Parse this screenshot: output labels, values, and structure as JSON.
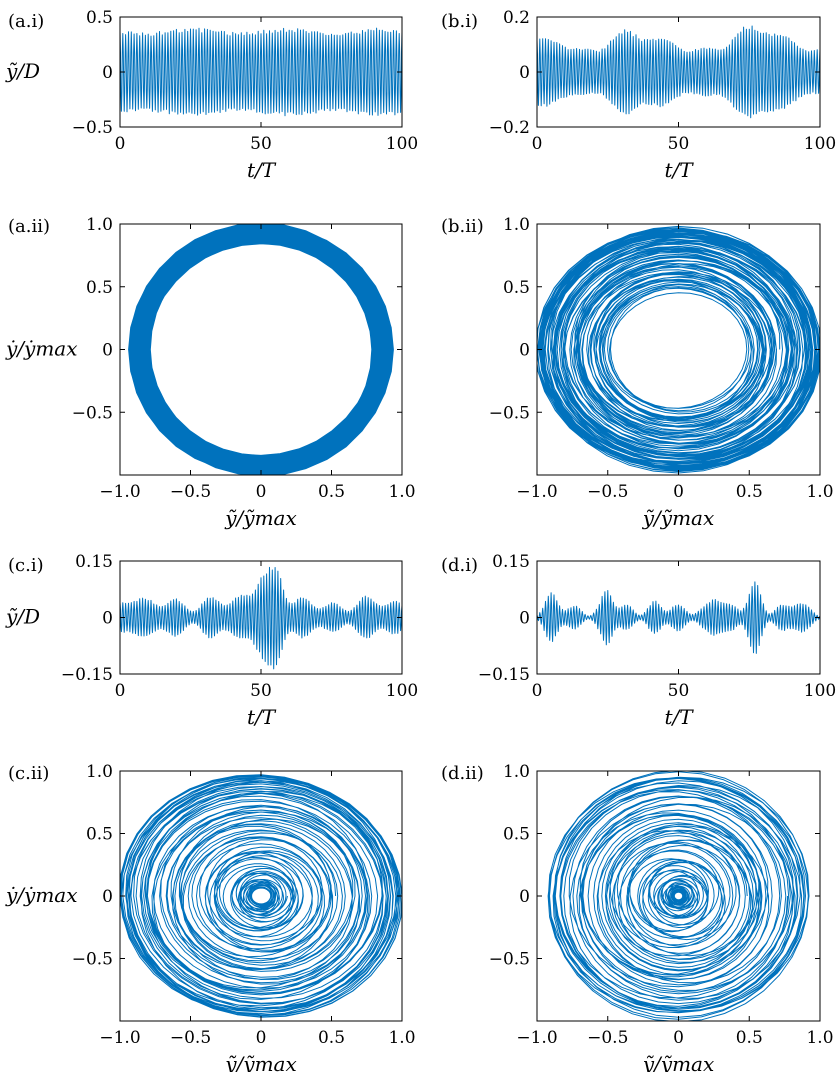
{
  "figure": {
    "series_color": "#0072BD",
    "rows": [
      {
        "ylabel": "ỹ/D",
        "xlabel": "t/T"
      },
      {
        "ylabel": "ẏ/ẏmax",
        "xlabel": "ỹ/ỹmax"
      },
      {
        "ylabel": "ỹ/D",
        "xlabel": "t/T"
      },
      {
        "ylabel": "ẏ/ẏmax",
        "xlabel": "ỹ/ỹmax"
      }
    ]
  },
  "chart_data": [
    {
      "id": "a-i",
      "panel_label": "(a.i)",
      "type": "line",
      "xlabel": "t/T",
      "ylabel": "ỹ/D",
      "xlim": [
        0,
        100
      ],
      "ylim": [
        -0.5,
        0.5
      ],
      "xticks": [
        {
          "v": 0,
          "label": "0"
        },
        {
          "v": 50,
          "label": "50"
        },
        {
          "v": 100,
          "label": "100"
        }
      ],
      "yticks": [
        {
          "v": -0.5,
          "label": "−0.5"
        },
        {
          "v": 0,
          "label": "0"
        },
        {
          "v": 0.5,
          "label": "0.5"
        }
      ],
      "series": [
        {
          "kind": "time",
          "cycles": 100,
          "base": 0.38,
          "modulation": [
            {
              "a": 0.02,
              "f": 3
            }
          ],
          "envelope": []
        }
      ]
    },
    {
      "id": "b-i",
      "panel_label": "(b.i)",
      "type": "line",
      "xlabel": "t/T",
      "ylabel": "ỹ/D",
      "xlim": [
        0,
        100
      ],
      "ylim": [
        -0.2,
        0.2
      ],
      "xticks": [
        {
          "v": 0,
          "label": "0"
        },
        {
          "v": 50,
          "label": "50"
        },
        {
          "v": 100,
          "label": "100"
        }
      ],
      "yticks": [
        {
          "v": -0.2,
          "label": "−0.2"
        },
        {
          "v": 0,
          "label": "0"
        },
        {
          "v": 0.2,
          "label": "0.2"
        }
      ],
      "series": [
        {
          "kind": "time",
          "cycles": 100,
          "base": 0.1,
          "modulation": [
            {
              "a": 0.025,
              "f": 2.3
            },
            {
              "a": 0.01,
              "f": 7
            }
          ],
          "envelope": [
            {
              "c": 0.12,
              "at": 8,
              "w": 5
            },
            {
              "c": 0.135,
              "at": 30,
              "w": 6
            },
            {
              "c": 0.15,
              "at": 75,
              "w": 9
            },
            {
              "c": 0.1,
              "at": 58,
              "w": 4
            }
          ]
        }
      ]
    },
    {
      "id": "a-ii",
      "panel_label": "(a.ii)",
      "type": "line",
      "xlabel": "ỹ/ỹmax",
      "ylabel": "ẏ/ẏmax",
      "xlim": [
        -1,
        1
      ],
      "ylim": [
        -1,
        1
      ],
      "xticks": [
        {
          "v": -1,
          "label": "−1.0"
        },
        {
          "v": -0.5,
          "label": "−0.5"
        },
        {
          "v": 0,
          "label": "0"
        },
        {
          "v": 0.5,
          "label": "0.5"
        },
        {
          "v": 1,
          "label": "1.0"
        }
      ],
      "yticks": [
        {
          "v": -0.5,
          "label": "−0.5"
        },
        {
          "v": 0,
          "label": "0"
        },
        {
          "v": 0.5,
          "label": "0.5"
        },
        {
          "v": 1,
          "label": "1.0"
        }
      ],
      "series": [
        {
          "kind": "phase",
          "turns": 110,
          "rmin": 0.86,
          "rmax": 0.99,
          "sx": 0.93,
          "sy": 1.0,
          "mode": "band"
        }
      ]
    },
    {
      "id": "b-ii",
      "panel_label": "(b.ii)",
      "type": "line",
      "xlabel": "ỹ/ỹmax",
      "ylabel": "ẏ/ẏmax",
      "xlim": [
        -1,
        1
      ],
      "ylim": [
        -1,
        1
      ],
      "xticks": [
        {
          "v": -1,
          "label": "−1.0"
        },
        {
          "v": -0.5,
          "label": "−0.5"
        },
        {
          "v": 0,
          "label": "0"
        },
        {
          "v": 0.5,
          "label": "0.5"
        },
        {
          "v": 1,
          "label": "1.0"
        }
      ],
      "yticks": [
        {
          "v": -0.5,
          "label": "−0.5"
        },
        {
          "v": 0,
          "label": "0"
        },
        {
          "v": 0.5,
          "label": "0.5"
        },
        {
          "v": 1,
          "label": "1.0"
        }
      ],
      "series": [
        {
          "kind": "phase",
          "turns": 90,
          "rmin": 0.42,
          "rmax": 1.0,
          "sx": 1.0,
          "sy": 0.97,
          "mode": "bias-outer"
        }
      ]
    },
    {
      "id": "c-i",
      "panel_label": "(c.i)",
      "type": "line",
      "xlabel": "t/T",
      "ylabel": "ỹ/D",
      "xlim": [
        0,
        100
      ],
      "ylim": [
        -0.15,
        0.15
      ],
      "xticks": [
        {
          "v": 0,
          "label": "0"
        },
        {
          "v": 50,
          "label": "50"
        },
        {
          "v": 100,
          "label": "100"
        }
      ],
      "yticks": [
        {
          "v": -0.15,
          "label": "−0.15"
        },
        {
          "v": 0,
          "label": "0"
        },
        {
          "v": 0.15,
          "label": "0.15"
        }
      ],
      "series": [
        {
          "kind": "time",
          "cycles": 100,
          "base": 0.035,
          "modulation": [
            {
              "a": 0.012,
              "f": 9
            },
            {
              "a": 0.008,
              "f": 4
            }
          ],
          "envelope": [
            {
              "c": 0.06,
              "at": 4,
              "w": 4
            },
            {
              "c": 0.12,
              "at": 51,
              "w": 5
            },
            {
              "c": 0.1,
              "at": 56,
              "w": 3
            },
            {
              "c": 0.05,
              "at": 33,
              "w": 4
            },
            {
              "c": 0.04,
              "at": 88,
              "w": 4
            }
          ]
        }
      ]
    },
    {
      "id": "d-i",
      "panel_label": "(d.i)",
      "type": "line",
      "xlabel": "t/T",
      "ylabel": "ỹ/D",
      "xlim": [
        0,
        100
      ],
      "ylim": [
        -0.15,
        0.15
      ],
      "xticks": [
        {
          "v": 0,
          "label": "0"
        },
        {
          "v": 50,
          "label": "50"
        },
        {
          "v": 100,
          "label": "100"
        }
      ],
      "yticks": [
        {
          "v": -0.15,
          "label": "−0.15"
        },
        {
          "v": 0,
          "label": "0"
        },
        {
          "v": 0.15,
          "label": "0.15"
        }
      ],
      "series": [
        {
          "kind": "time",
          "cycles": 100,
          "base": 0.02,
          "modulation": [
            {
              "a": 0.01,
              "f": 11
            },
            {
              "a": 0.006,
              "f": 5
            }
          ],
          "envelope": [
            {
              "c": 0.055,
              "at": 5,
              "w": 3
            },
            {
              "c": 0.075,
              "at": 25,
              "w": 2.5
            },
            {
              "c": 0.04,
              "at": 42,
              "w": 3
            },
            {
              "c": 0.06,
              "at": 63,
              "w": 3
            },
            {
              "c": 0.095,
              "at": 77,
              "w": 3
            },
            {
              "c": 0.04,
              "at": 92,
              "w": 3
            }
          ]
        }
      ]
    },
    {
      "id": "c-ii",
      "panel_label": "(c.ii)",
      "type": "line",
      "xlabel": "ỹ/ỹmax",
      "ylabel": "ẏ/ẏmax",
      "xlim": [
        -1,
        1
      ],
      "ylim": [
        -1,
        1
      ],
      "xticks": [
        {
          "v": -1,
          "label": "−1.0"
        },
        {
          "v": -0.5,
          "label": "−0.5"
        },
        {
          "v": 0,
          "label": "0"
        },
        {
          "v": 0.5,
          "label": "0.5"
        },
        {
          "v": 1,
          "label": "1.0"
        }
      ],
      "yticks": [
        {
          "v": -0.5,
          "label": "−0.5"
        },
        {
          "v": 0,
          "label": "0"
        },
        {
          "v": 0.5,
          "label": "0.5"
        },
        {
          "v": 1,
          "label": "1.0"
        }
      ],
      "series": [
        {
          "kind": "phase",
          "turns": 80,
          "rmin": 0.06,
          "rmax": 1.0,
          "sx": 1.0,
          "sy": 0.98,
          "mode": "spiral"
        }
      ]
    },
    {
      "id": "d-ii",
      "panel_label": "(d.ii)",
      "type": "line",
      "xlabel": "ỹ/ỹmax",
      "ylabel": "ẏ/ẏmax",
      "xlim": [
        -1,
        1
      ],
      "ylim": [
        -1,
        1
      ],
      "xticks": [
        {
          "v": -1,
          "label": "−1.0"
        },
        {
          "v": -0.5,
          "label": "−0.5"
        },
        {
          "v": 0,
          "label": "0"
        },
        {
          "v": 0.5,
          "label": "0.5"
        },
        {
          "v": 1,
          "label": "1.0"
        }
      ],
      "yticks": [
        {
          "v": -0.5,
          "label": "−0.5"
        },
        {
          "v": 0,
          "label": "0"
        },
        {
          "v": 0.5,
          "label": "0.5"
        },
        {
          "v": 1,
          "label": "1.0"
        }
      ],
      "series": [
        {
          "kind": "phase",
          "turns": 80,
          "rmin": 0.03,
          "rmax": 1.0,
          "sx": 0.95,
          "sy": 1.0,
          "mode": "spiral-dense"
        }
      ]
    }
  ]
}
